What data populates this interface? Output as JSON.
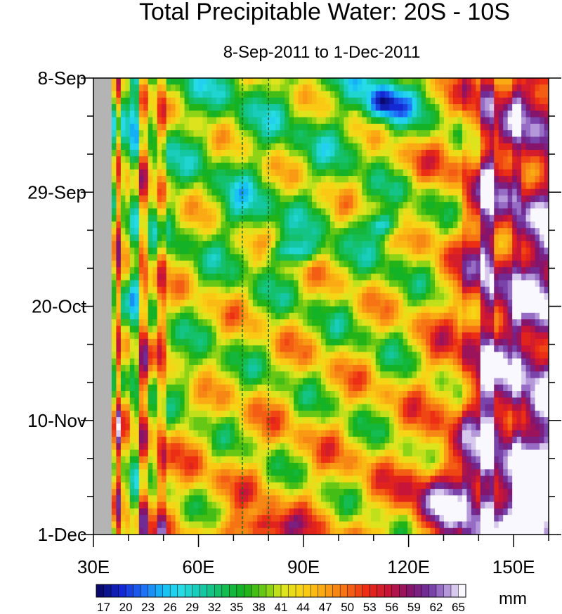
{
  "chart_data": {
    "type": "heatmap",
    "title": "Total Precipitable Water: 20S - 10S",
    "subtitle": "8-Sep-2011 to 1-Dec-2011",
    "units": "mm",
    "xlim": [
      30,
      160
    ],
    "x_ticks": [
      {
        "value": 30,
        "label": "30E"
      },
      {
        "value": 60,
        "label": "60E"
      },
      {
        "value": 90,
        "label": "90E"
      },
      {
        "value": 120,
        "label": "120E"
      },
      {
        "value": 150,
        "label": "150E"
      }
    ],
    "y_ticks": [
      {
        "day": 0,
        "label": "8-Sep"
      },
      {
        "day": 21,
        "label": "29-Sep"
      },
      {
        "day": 42,
        "label": "20-Oct"
      },
      {
        "day": 63,
        "label": "10-Nov"
      },
      {
        "day": 84,
        "label": "1-Dec"
      }
    ],
    "ylim_days": [
      0,
      84
    ],
    "reference_lines_lon": [
      72.5,
      80
    ],
    "colorbar": {
      "min": 15.5,
      "step": 1,
      "count": 50,
      "labels": [
        "17",
        "20",
        "23",
        "26",
        "29",
        "32",
        "35",
        "38",
        "41",
        "44",
        "47",
        "50",
        "53",
        "56",
        "59",
        "62",
        "65"
      ]
    },
    "colors": {
      "missing": "#b4b4b4",
      "ref_line": "#1a6a1a"
    }
  }
}
